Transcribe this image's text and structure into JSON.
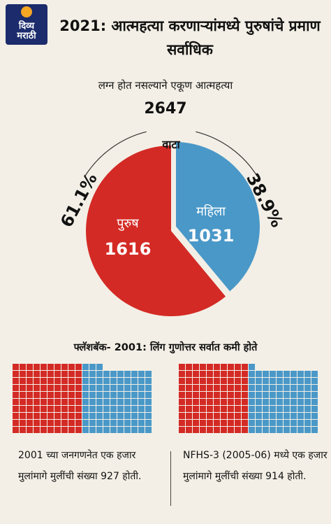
{
  "logo": {
    "line1": "दिव्य",
    "line2": "मराठी"
  },
  "header": {
    "title": "2021: आत्महत्या करणाऱ्यांमध्ये पुरुषांचे प्रमाण सर्वाधिक",
    "subtitle": "लग्न होत नसल्याने एकूण आत्महत्या",
    "total": "2647"
  },
  "colors": {
    "red": "#d42a25",
    "blue": "#4a98c8",
    "bg": "#f3efe6"
  },
  "chart_data": [
    {
      "type": "pie",
      "title": "वाटा",
      "slices": [
        {
          "label": "पुरुष",
          "value": 1616,
          "percent": "61.1%",
          "color": "#d42a25"
        },
        {
          "label": "महिला",
          "value": 1031,
          "percent": "38.9%",
          "color": "#4a98c8"
        }
      ]
    },
    {
      "type": "waffle",
      "title": "फ्लॅशबॅक- 2001: लिंग गुणोत्तर सर्वात कमी होते",
      "panels": [
        {
          "caption": "2001 च्या जनगणनेत एक हजार मुलांमागे मुलींची संख्या 927 होती.",
          "boys": 1000,
          "girls": 927
        },
        {
          "caption": "NFHS-3 (2005-06) मध्ये एक हजार मुलांमागे मुलींची संख्या 914 होती.",
          "boys": 1000,
          "girls": 914
        }
      ]
    }
  ]
}
